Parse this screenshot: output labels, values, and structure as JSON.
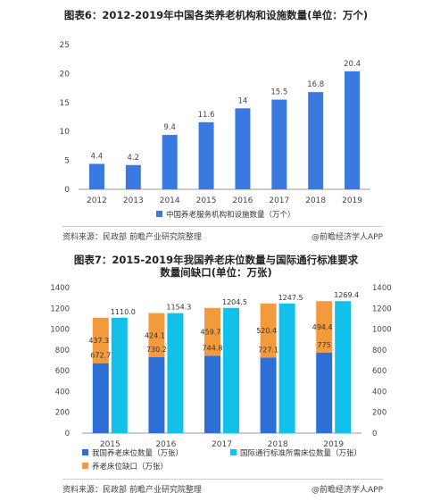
{
  "charts": {
    "one": {
      "title": "图表6：2012-2019年中国各类养老机构和设施数量(单位：万个)",
      "source": "资料来源：民政部 前瞻产业研究院整理",
      "brand": "@前瞻经济学人APP"
    },
    "two": {
      "title": "图表7：2015-2019年我国养老床位数量与国际通行标准要求数量间缺口(单位：万张)",
      "source": "资料来源：民政部 前瞻产业研究院整理",
      "brand": "@前瞻经济学人APP"
    }
  },
  "chart_data": [
    {
      "type": "bar",
      "title": "图表6：2012-2019年中国各类养老机构和设施数量(单位：万个)",
      "categories": [
        "2012",
        "2013",
        "2014",
        "2015",
        "2016",
        "2017",
        "2018",
        "2019"
      ],
      "series": [
        {
          "name": "中国养老服务机构和设施数量（万个）",
          "values": [
            4.4,
            4.2,
            9.4,
            11.6,
            14,
            15.5,
            16.8,
            20.4
          ],
          "color": "#3a7ae0"
        }
      ],
      "ylim": [
        0,
        25
      ],
      "yticks": [
        0,
        5,
        10,
        15,
        20,
        25
      ],
      "value_labels": [
        "4.4",
        "4.2",
        "9.4",
        "11.6",
        "14",
        "15.5",
        "16.8",
        "20.4"
      ],
      "legend": "bottom",
      "grid": false
    },
    {
      "type": "bar",
      "title": "图表7：2015-2019年我国养老床位数量与国际通行标准要求数量间缺口(单位：万张)",
      "categories": [
        "2015",
        "2016",
        "2017",
        "2018",
        "2019"
      ],
      "series": [
        {
          "name": "我国养老床位数量（万张）",
          "values": [
            672.7,
            730.2,
            744.8,
            727.1,
            775
          ],
          "labels": [
            "672.7",
            "730.2",
            "744.8",
            "727.1",
            "775"
          ],
          "color": "#2e6fd6",
          "stack": "a"
        },
        {
          "name": "养老床位缺口（万张）",
          "values": [
            437.3,
            424.1,
            459.7,
            520.4,
            494.4
          ],
          "labels": [
            "437.3",
            "424.1",
            "459.7",
            "520.4",
            "494.4"
          ],
          "color": "#f39a3d",
          "stack": "a"
        },
        {
          "name": "国际通行标准所需床位数量（万张）",
          "values": [
            1110.0,
            1154.3,
            1204.5,
            1247.5,
            1269.4
          ],
          "labels": [
            "1110.0",
            "1154.3",
            "1204.5",
            "1247.5",
            "1269.4"
          ],
          "color": "#13c0ea",
          "stack": "b"
        }
      ],
      "ylim": [
        0,
        1400
      ],
      "yticks": [
        0,
        200,
        400,
        600,
        800,
        1000,
        1200,
        1400
      ],
      "y2lim": [
        0,
        1400
      ],
      "legend": "bottom",
      "grid": false
    }
  ]
}
